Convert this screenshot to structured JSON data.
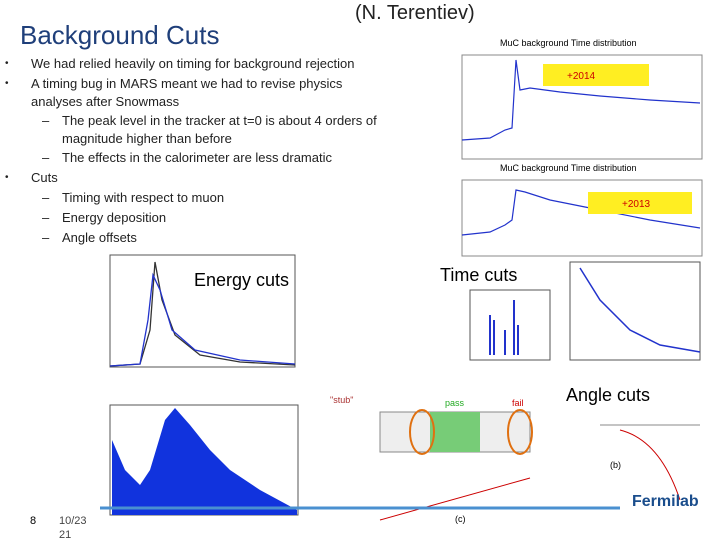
{
  "header": {
    "title": "Background Cuts",
    "author": "(N. Terentiev)"
  },
  "bullets": [
    {
      "text": "We had relied heavily on timing for background rejection"
    },
    {
      "text": "A timing bug in MARS meant we had to revise physics analyses after Snowmass",
      "sub": [
        "The peak level in the tracker at t=0 is about 4 orders of magnitude higher than before",
        "The effects in the calorimeter are less dramatic"
      ]
    },
    {
      "text": "Cuts",
      "sub": [
        "Timing with respect to muon",
        "Energy deposition",
        "Angle offsets"
      ]
    }
  ],
  "figure_labels": {
    "energy": "Energy cuts",
    "time": "Time cuts",
    "angle": "Angle cuts"
  },
  "insets": {
    "top_title": "MuC background Time distribution",
    "top_tag": "+2014",
    "bottom_title": "MuC background Time distribution",
    "bottom_tag": "+2013"
  },
  "diagram": {
    "stub": "\"stub\"",
    "pass": "pass",
    "fail": "fail",
    "b": "(b)",
    "c": "(c)"
  },
  "footer": {
    "page": "8",
    "date": "10/23",
    "date2": "21",
    "logo": "Fermilab"
  }
}
